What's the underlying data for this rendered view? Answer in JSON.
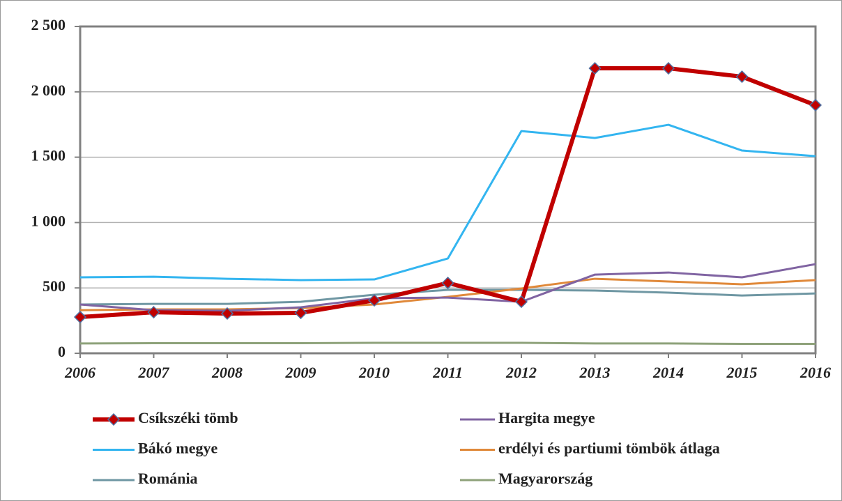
{
  "chart_data": {
    "type": "line",
    "categories": [
      "2006",
      "2007",
      "2008",
      "2009",
      "2010",
      "2011",
      "2012",
      "2013",
      "2014",
      "2015",
      "2016"
    ],
    "ylim": [
      0,
      2500
    ],
    "yticks": [
      0,
      500,
      {
        "value": 1000,
        "label": "1 000"
      },
      {
        "value": 1500,
        "label": "1 500"
      },
      {
        "value": 2000,
        "label": "2 000"
      },
      {
        "value": 2500,
        "label": "2 500"
      }
    ],
    "grid": true,
    "series": [
      {
        "name": "Csíkszéki tömb",
        "color": "#c00000",
        "width": 6,
        "marker": "diamond",
        "values": [
          277,
          314,
          304,
          309,
          405,
          538,
          394,
          2180,
          2180,
          2116,
          1898
        ]
      },
      {
        "name": "Hargita megye",
        "color": "#8064a2",
        "width": 3,
        "values": [
          373,
          330,
          325,
          352,
          421,
          426,
          394,
          602,
          618,
          581,
          682
        ]
      },
      {
        "name": "Bákó megye",
        "color": "#33b5f0",
        "width": 3,
        "values": [
          581,
          586,
          570,
          560,
          565,
          725,
          1700,
          1647,
          1748,
          1551,
          1508
        ]
      },
      {
        "name": "erdélyi és partiumi tömbök átlaga",
        "color": "#e0893a",
        "width": 3,
        "values": [
          330,
          336,
          336,
          346,
          373,
          432,
          496,
          570,
          549,
          528,
          560
        ]
      },
      {
        "name": "Románia",
        "color": "#6f97a3",
        "width": 3,
        "values": [
          373,
          378,
          378,
          394,
          448,
          485,
          485,
          480,
          464,
          442,
          458
        ]
      },
      {
        "name": "Magyarország",
        "color": "#8ea27a",
        "width": 3,
        "values": [
          75,
          77,
          77,
          77,
          80,
          80,
          80,
          75,
          75,
          72,
          72
        ]
      }
    ]
  }
}
